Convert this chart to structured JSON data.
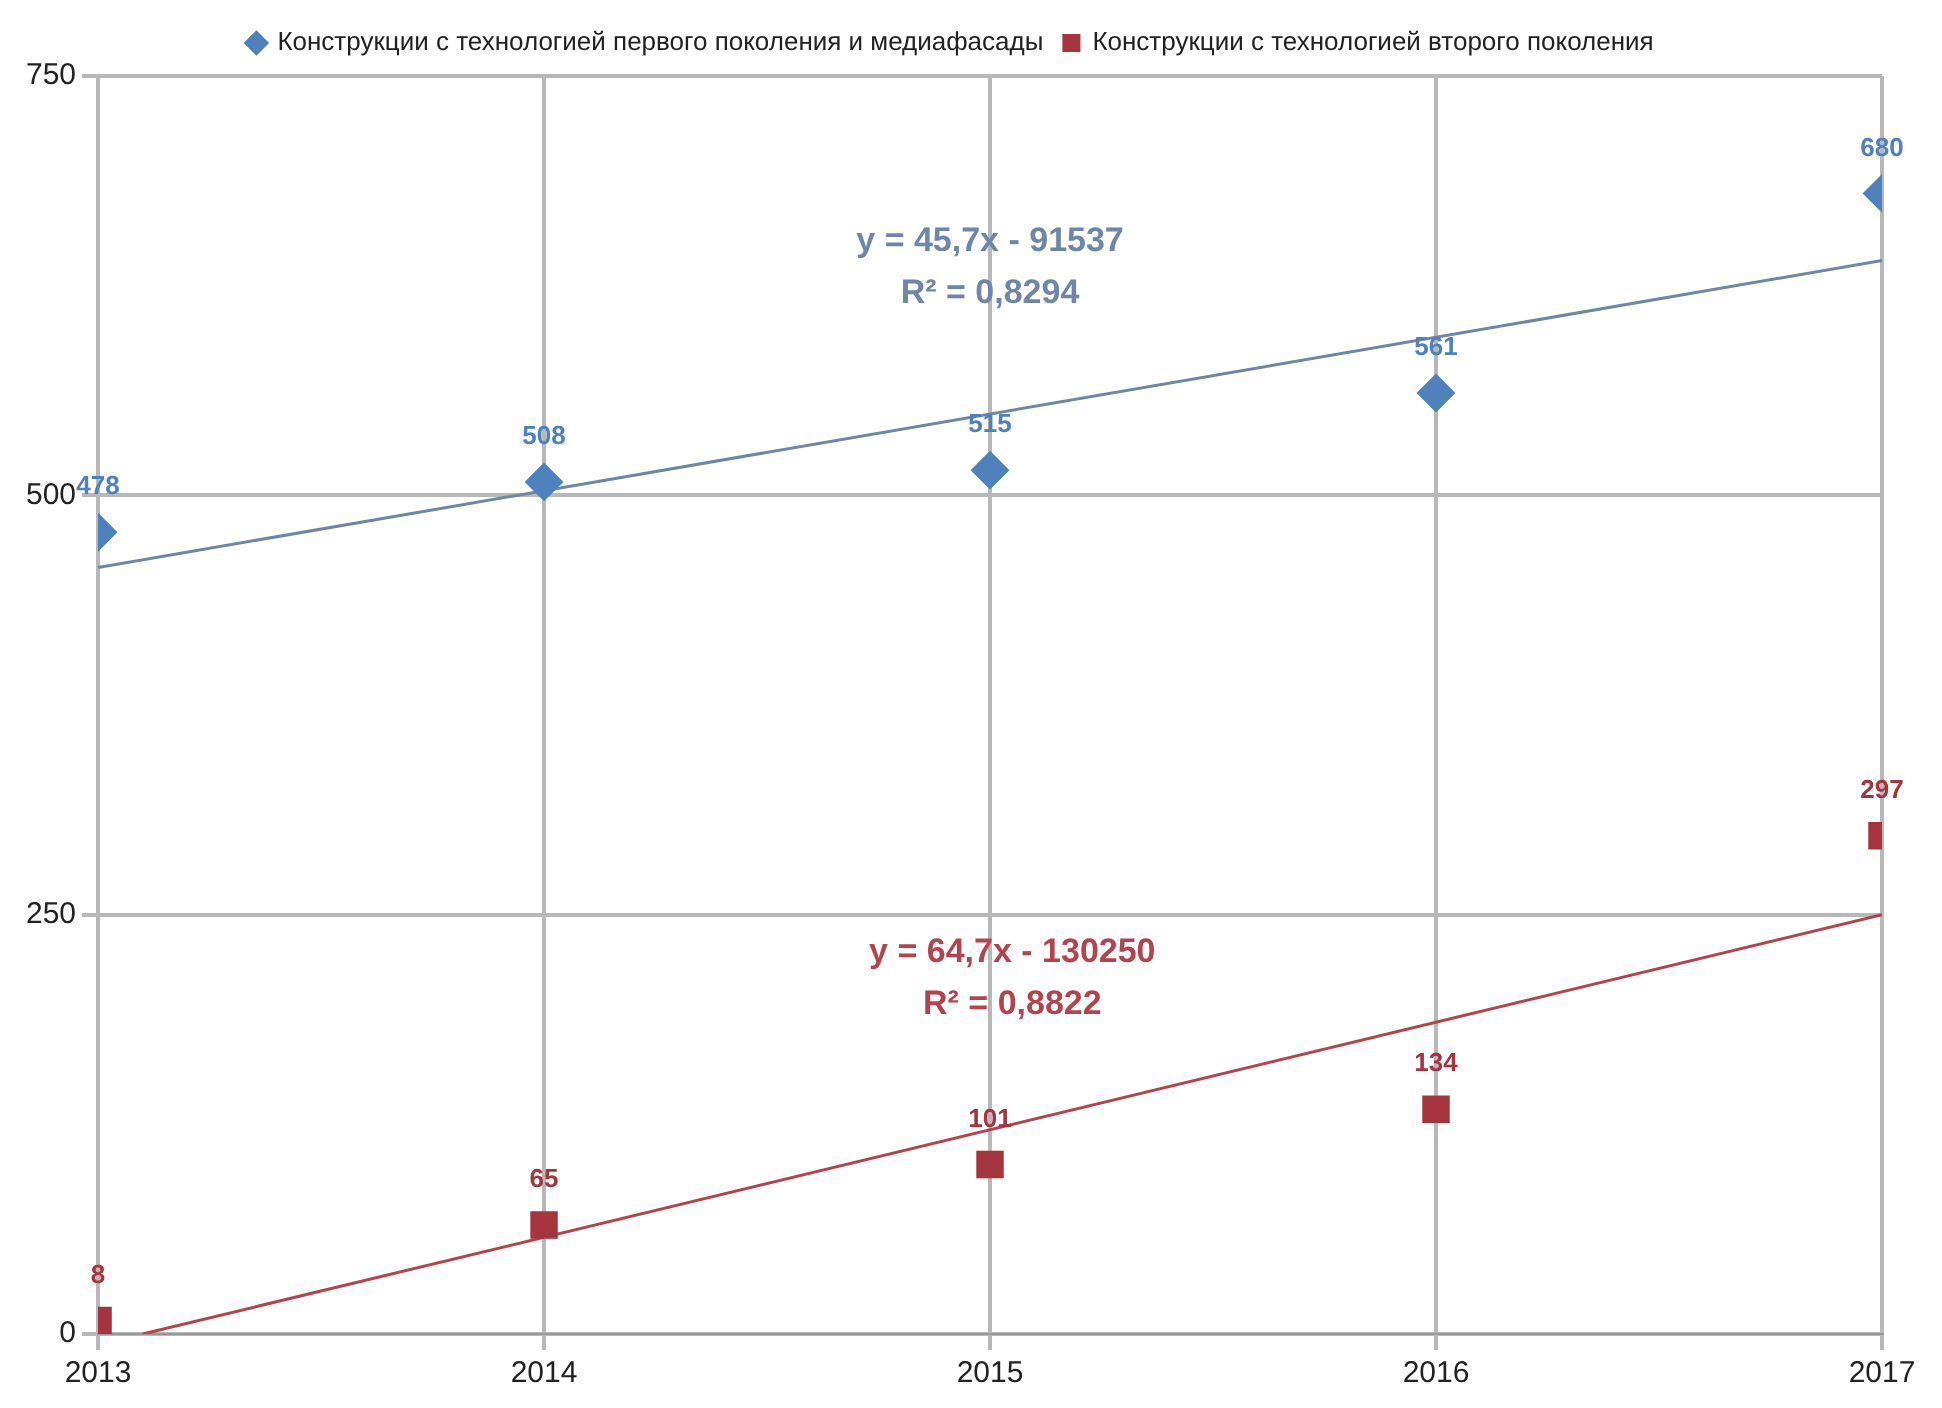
{
  "chart_data": {
    "type": "scatter",
    "xlim": [
      2013,
      2017
    ],
    "xticks": [
      2013,
      2014,
      2015,
      2016,
      2017
    ],
    "ylim": [
      0,
      750
    ],
    "yticks": [
      0,
      250,
      500,
      750
    ],
    "grid": true,
    "legend": "top",
    "series": [
      {
        "name": "Конструкции с технологией первого поколения и медиафасады",
        "color": "#4f81bd",
        "marker": "diamond",
        "x": [
          2013,
          2014,
          2015,
          2016,
          2017
        ],
        "values": [
          478,
          508,
          515,
          561,
          680
        ],
        "value_labels": [
          "478",
          "508",
          "515",
          "561",
          "680"
        ]
      },
      {
        "name": "Конструкции с технологией второго поколения",
        "color": "#a5343f",
        "marker": "square",
        "x": [
          2013,
          2014,
          2015,
          2016,
          2017
        ],
        "values": [
          8,
          65,
          101,
          134,
          297
        ],
        "value_labels": [
          "8",
          "65",
          "101",
          "134",
          "297"
        ]
      },
      {
        "type": "line",
        "color": "#6f86a8",
        "marker": "none",
        "x": [
          2013,
          2017
        ],
        "values": [
          457,
          640
        ]
      },
      {
        "type": "line",
        "color": "#b5434e",
        "marker": "none",
        "x": [
          2013.1,
          2017
        ],
        "values": [
          0,
          250
        ]
      }
    ],
    "annotations": [
      "y = 45,7x - 91537",
      "R² = 0,8294",
      "y = 64,7x - 130250",
      "R² = 0,8822"
    ]
  }
}
